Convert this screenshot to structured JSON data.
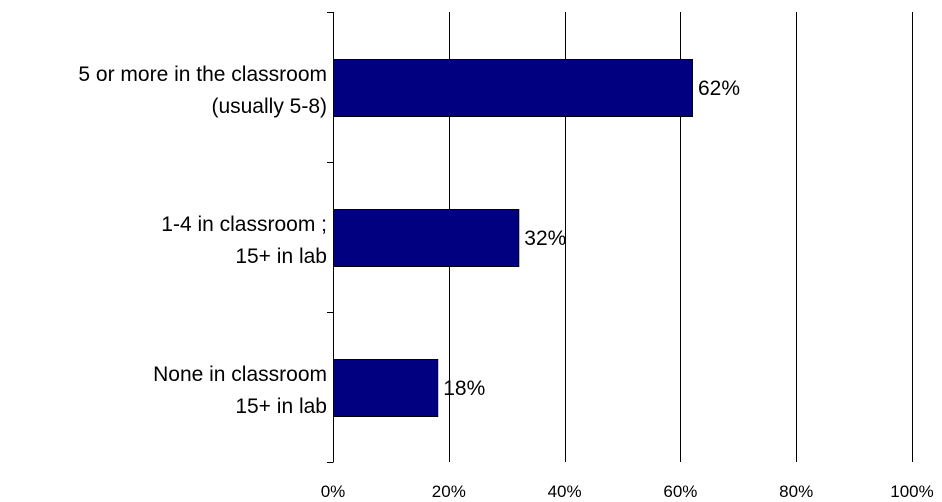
{
  "chart_data": {
    "type": "bar",
    "orientation": "horizontal",
    "categories": [
      [
        "5 or more in the classroom",
        "(usually 5-8)"
      ],
      [
        "1-4 in classroom ;",
        "15+ in lab"
      ],
      [
        "None in classroom",
        "15+ in lab"
      ]
    ],
    "values": [
      62,
      32,
      18
    ],
    "data_labels": [
      "62%",
      "32%",
      "18%"
    ],
    "xlim": [
      0,
      100
    ],
    "x_ticks": [
      0,
      20,
      40,
      60,
      80,
      100
    ],
    "x_tick_labels": [
      "0%",
      "20%",
      "40%",
      "60%",
      "80%",
      "100%"
    ],
    "title": "",
    "xlabel": "",
    "ylabel": "",
    "grid": "vertical",
    "legend": "none",
    "bar_color": "#000080",
    "bar_edge_color": "#000000"
  }
}
